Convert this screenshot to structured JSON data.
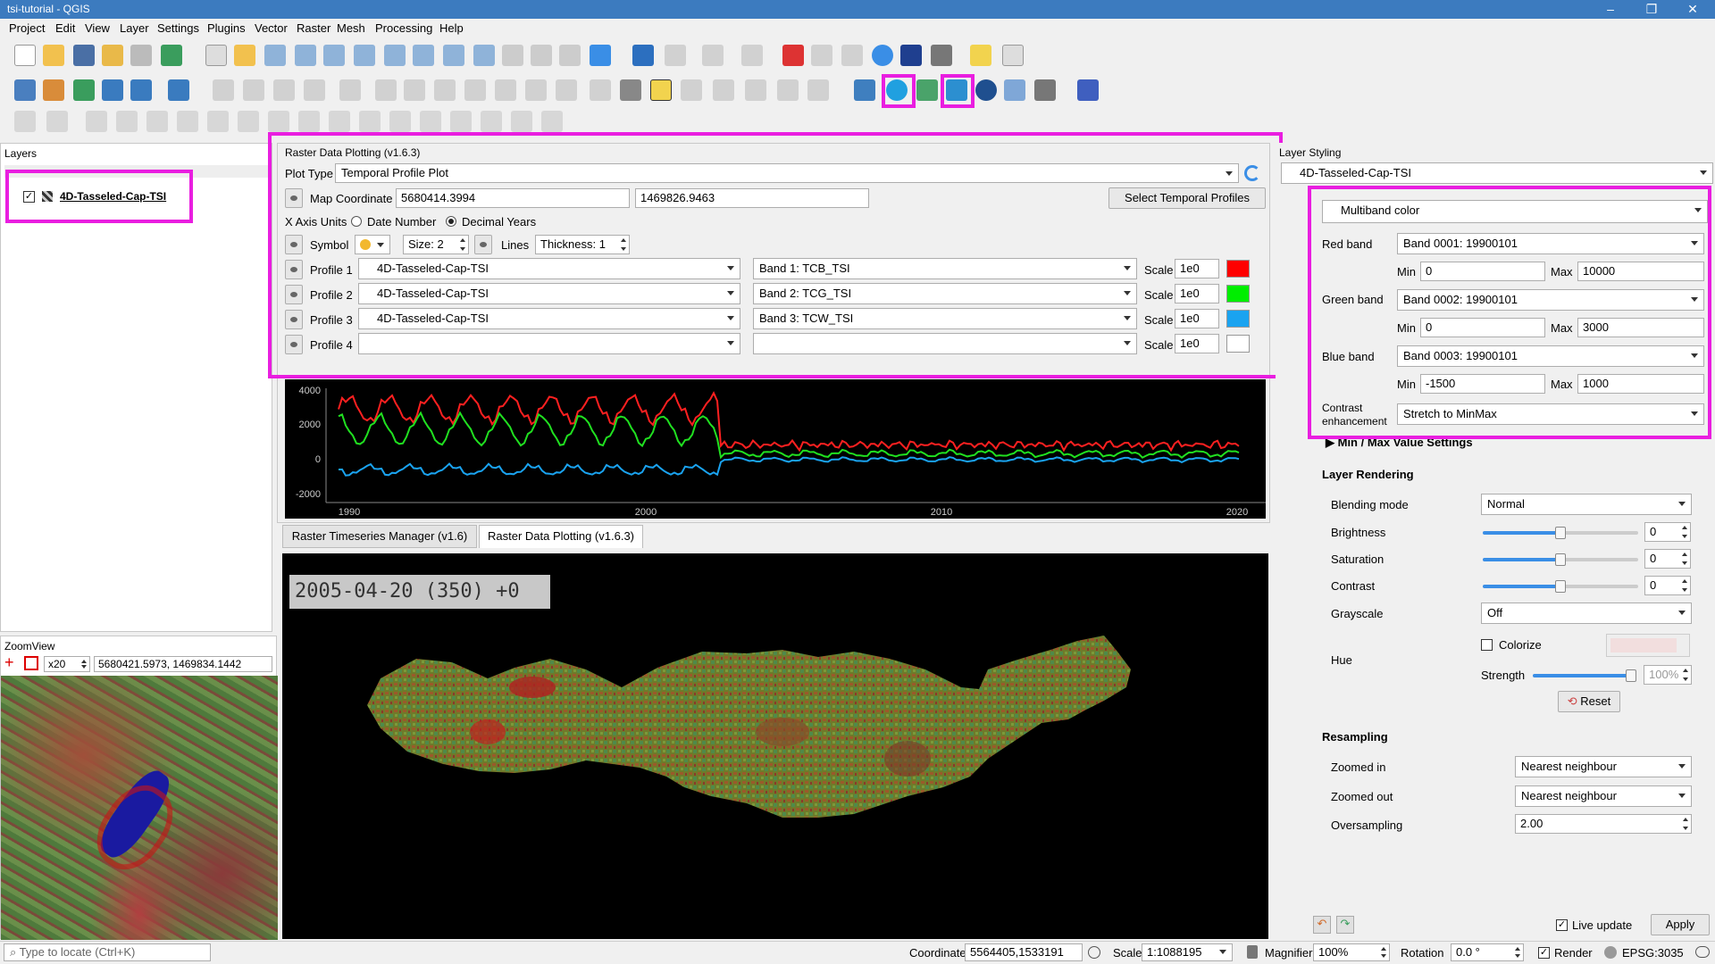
{
  "window": {
    "title": "tsi-tutorial - QGIS"
  },
  "menu": [
    "Project",
    "Edit",
    "View",
    "Layer",
    "Settings",
    "Plugins",
    "Vector",
    "Raster",
    "Mesh",
    "Processing",
    "Help"
  ],
  "layers_panel": {
    "title": "Layers",
    "items": [
      {
        "name": "4D-Tasseled-Cap-TSI",
        "checked": true
      }
    ]
  },
  "zoomview": {
    "title": "ZoomView",
    "zoom": "x20",
    "coordinate": "5680421.5973, 1469834.1442"
  },
  "plotting": {
    "title": "Raster Data Plotting (v1.6.3)",
    "plot_type_label": "Plot Type",
    "plot_type_value": "Temporal Profile Plot",
    "map_coord_label": "Map Coordinate",
    "map_x": "5680414.3994",
    "map_y": "1469826.9463",
    "select_btn": "Select Temporal Profiles",
    "x_units_label": "X Axis Units",
    "opt_date": "Date Number",
    "opt_decimal": "Decimal Years",
    "symbol_label": "Symbol",
    "size_value": "Size: 2",
    "lines_label": "Lines",
    "thickness_value": "Thickness: 1",
    "scale_label": "Scale",
    "profiles": [
      {
        "label": "Profile 1",
        "layer": "4D-Tasseled-Cap-TSI",
        "band": "Band 1: TCB_TSI",
        "scale": "1e0",
        "color": "#ff0000"
      },
      {
        "label": "Profile 2",
        "layer": "4D-Tasseled-Cap-TSI",
        "band": "Band 2: TCG_TSI",
        "scale": "1e0",
        "color": "#00ee00"
      },
      {
        "label": "Profile 3",
        "layer": "4D-Tasseled-Cap-TSI",
        "band": "Band 3: TCW_TSI",
        "scale": "1e0",
        "color": "#1aa3f0"
      },
      {
        "label": "Profile 4",
        "layer": "",
        "band": "",
        "scale": "1e0",
        "color": "#ffffff"
      }
    ]
  },
  "chart": {
    "y_ticks": [
      "4000",
      "2000",
      "0",
      "-2000"
    ],
    "x_ticks": [
      "1990",
      "2000",
      "2010",
      "2020"
    ]
  },
  "tabs": [
    "Raster Timeseries Manager (v1.6)",
    "Raster Data Plotting (v1.6.3)"
  ],
  "map_view": {
    "date_overlay": "2005-04-20 (350) +0"
  },
  "styling": {
    "title": "Layer Styling",
    "layer": "4D-Tasseled-Cap-TSI",
    "renderer": "Multiband color",
    "red_band_label": "Red band",
    "red_band": "Band 0001: 19900101",
    "red_min": "0",
    "red_max": "10000",
    "green_band_label": "Green band",
    "green_band": "Band 0002: 19900101",
    "green_min": "0",
    "green_max": "3000",
    "blue_band_label": "Blue band",
    "blue_band": "Band 0003: 19900101",
    "blue_min": "-1500",
    "blue_max": "1000",
    "min_label": "Min",
    "max_label": "Max",
    "contrast_label_1": "Contrast",
    "contrast_label_2": "enhancement",
    "contrast_value": "Stretch to MinMax",
    "minmax_section": "Min / Max Value Settings",
    "rendering_section": "Layer Rendering",
    "blending_label": "Blending mode",
    "blending_value": "Normal",
    "brightness_label": "Brightness",
    "brightness_value": "0",
    "saturation_label": "Saturation",
    "saturation_value": "0",
    "contrast2_label": "Contrast",
    "contrast2_value": "0",
    "grayscale_label": "Grayscale",
    "grayscale_value": "Off",
    "hue_label": "Hue",
    "colorize_label": "Colorize",
    "strength_label": "Strength",
    "strength_value": "100%",
    "reset_btn": "Reset",
    "resampling_section": "Resampling",
    "zoomed_in_label": "Zoomed in",
    "zoomed_in_value": "Nearest neighbour",
    "zoomed_out_label": "Zoomed out",
    "zoomed_out_value": "Nearest neighbour",
    "oversampling_label": "Oversampling",
    "oversampling_value": "2.00",
    "live_update_label": "Live update",
    "apply_btn": "Apply"
  },
  "statusbar": {
    "locate_placeholder": "Type to locate (Ctrl+K)",
    "coordinate_label": "Coordinate",
    "coordinate_value": "5564405,1533191",
    "scale_label": "Scale",
    "scale_value": "1:1088195",
    "magnifier_label": "Magnifier",
    "magnifier_value": "100%",
    "rotation_label": "Rotation",
    "rotation_value": "0.0 °",
    "render_label": "Render",
    "crs": "EPSG:3035"
  }
}
